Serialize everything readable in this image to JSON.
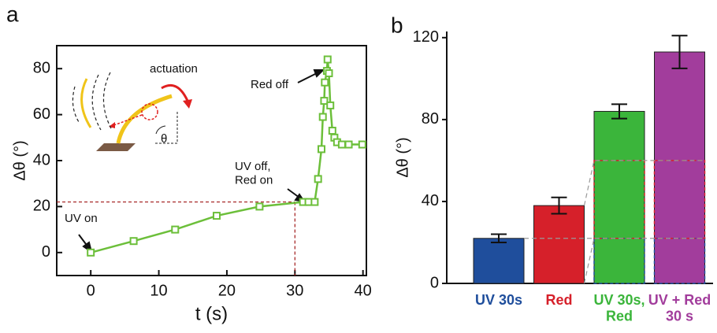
{
  "chart_data": [
    {
      "type": "line",
      "panel_label": "a",
      "xlabel": "t (s)",
      "ylabel": "Δθ (°)",
      "x": [
        0,
        6.3,
        12.4,
        18.5,
        24.8,
        31.2,
        32,
        32.9,
        33.4,
        33.9,
        34.1,
        34.3,
        34.4,
        34.7,
        34.8,
        35,
        35.2,
        35.5,
        35.8,
        36.2,
        36.9,
        37.9,
        39.9
      ],
      "series": [
        {
          "color": "#6cbf3a",
          "values": [
            0,
            5,
            10,
            16,
            20,
            22,
            22,
            22,
            32,
            45,
            59,
            66,
            74,
            79,
            84,
            78,
            64,
            53,
            50,
            48,
            47,
            47,
            47
          ]
        }
      ],
      "xlim": [
        -5,
        40.5
      ],
      "ylim": [
        -10,
        90
      ],
      "xticks": [
        0,
        10,
        20,
        30,
        40
      ],
      "yticks": [
        0,
        20,
        40,
        60,
        80
      ],
      "guide": {
        "x": 30,
        "y": 22,
        "color": "#a01818"
      },
      "annotations": [
        "UV on",
        "UV off,\nRed on",
        "Red off",
        "actuation",
        "θ"
      ]
    },
    {
      "type": "bar",
      "panel_label": "b",
      "ylabel": "Δθ (°)",
      "categories": [
        "UV 30s",
        "Red",
        "UV 30s,\nRed",
        "UV + Red\n30 s"
      ],
      "values": [
        22,
        38,
        84,
        113
      ],
      "errors": [
        2,
        4,
        3.5,
        8
      ],
      "colors": [
        "#1f4e9c",
        "#d6202a",
        "#3bb53b",
        "#a23d9c"
      ],
      "ylim": [
        0,
        123
      ],
      "yticks": [
        0,
        40,
        80,
        120
      ]
    }
  ]
}
